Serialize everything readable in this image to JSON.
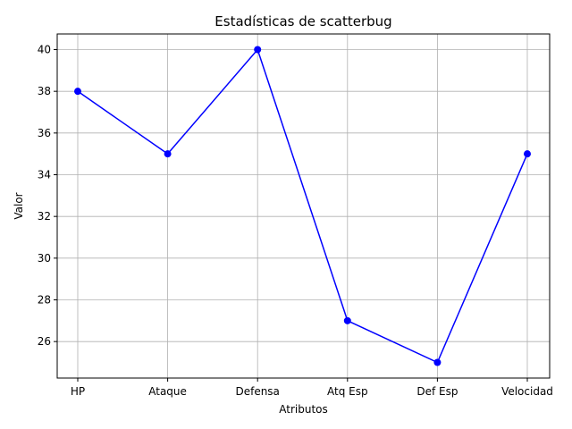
{
  "chart_data": {
    "type": "line",
    "title": "Estadísticas de scatterbug",
    "xlabel": "Atributos",
    "ylabel": "Valor",
    "categories": [
      "HP",
      "Ataque",
      "Defensa",
      "Atq Esp",
      "Def Esp",
      "Velocidad"
    ],
    "series": [
      {
        "values": [
          38,
          35,
          40,
          27,
          25,
          35
        ],
        "color": "#0000ff",
        "marker": "circle"
      }
    ],
    "yticks": [
      26,
      28,
      30,
      32,
      34,
      36,
      38,
      40
    ],
    "ylim": [
      24.25,
      40.75
    ],
    "grid": true,
    "legend": "none"
  }
}
